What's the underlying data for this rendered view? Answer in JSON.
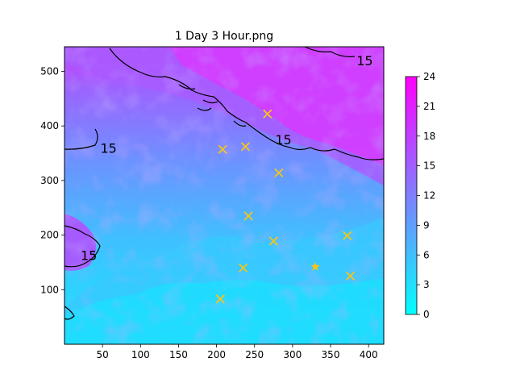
{
  "chart_data": {
    "type": "heatmap",
    "title": "1 Day 3 Hour.png",
    "xlabel": "",
    "ylabel": "",
    "xlim": [
      0,
      420
    ],
    "ylim": [
      0,
      545
    ],
    "x_ticks": [
      50,
      100,
      150,
      200,
      250,
      300,
      350,
      400
    ],
    "y_ticks": [
      100,
      200,
      300,
      400,
      500
    ],
    "colorbar": {
      "min": 0,
      "max": 24,
      "ticks": [
        0,
        3,
        6,
        9,
        12,
        15,
        18,
        21,
        24
      ],
      "colormap": "cool",
      "color_low": "#00ffff",
      "color_high": "#ff00ff"
    },
    "contour_labels": [
      {
        "text": "15",
        "x": 395,
        "y": 520
      },
      {
        "text": "15",
        "x": 58,
        "y": 360
      },
      {
        "text": "15",
        "x": 288,
        "y": 375
      },
      {
        "text": "15",
        "x": 32,
        "y": 163
      }
    ],
    "markers": {
      "color": "#f5c518",
      "x_points": [
        {
          "x": 267,
          "y": 422
        },
        {
          "x": 208,
          "y": 357
        },
        {
          "x": 238,
          "y": 362
        },
        {
          "x": 282,
          "y": 314
        },
        {
          "x": 242,
          "y": 235
        },
        {
          "x": 275,
          "y": 189
        },
        {
          "x": 372,
          "y": 199
        },
        {
          "x": 235,
          "y": 140
        },
        {
          "x": 376,
          "y": 125
        },
        {
          "x": 205,
          "y": 83
        }
      ],
      "star_points": [
        {
          "x": 330,
          "y": 142
        }
      ]
    }
  }
}
